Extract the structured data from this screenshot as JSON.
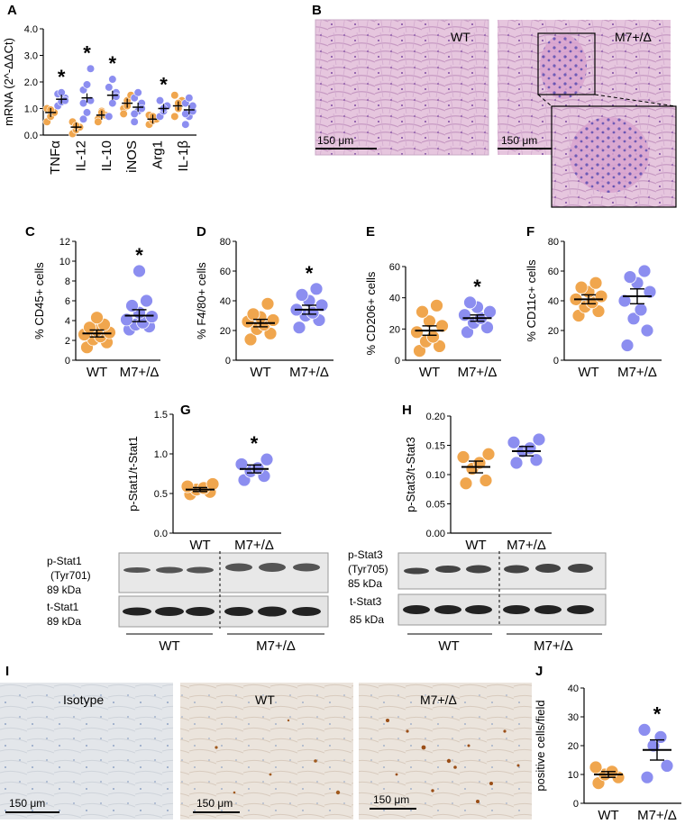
{
  "colors": {
    "wt": "#f0a64e",
    "mut": "#8c8ef0",
    "axis": "#000000"
  },
  "panel_letters": [
    "A",
    "B",
    "C",
    "D",
    "E",
    "F",
    "G",
    "H",
    "I",
    "J"
  ],
  "histology": {
    "B": {
      "labels": [
        "WT",
        "M7+/Δ"
      ],
      "scale": "150 μm"
    },
    "I": {
      "labels": [
        "Isotype",
        "WT",
        "M7+/Δ"
      ],
      "scale": "150 μm"
    }
  },
  "blots": {
    "G": {
      "row1": [
        "p-Stat1",
        "(Tyr701)",
        "89 kDa"
      ],
      "row2": [
        "t-Stat1",
        "89 kDa"
      ],
      "groups": [
        "WT",
        "M7+/Δ"
      ]
    },
    "H": {
      "row1": [
        "p-Stat3",
        "(Tyr705)",
        "85 kDa"
      ],
      "row2": [
        "t-Stat3",
        "85 kDa"
      ],
      "groups": [
        "WT",
        "M7+/Δ"
      ]
    }
  },
  "chart_data": [
    {
      "id": "A",
      "type": "scatter",
      "ylabel": "mRNA (2^-ΔΔCt)",
      "ylim": [
        0,
        4
      ],
      "yticks": [
        "0.0",
        "1.0",
        "2.0",
        "3.0",
        "4.0"
      ],
      "categories": [
        "TNFα",
        "IL-12",
        "IL-10",
        "iNOS",
        "Arg1",
        "IL-1β"
      ],
      "significant": [
        "TNFα",
        "IL-12",
        "IL-10",
        "Arg1"
      ],
      "series": [
        {
          "group": "WT",
          "means": [
            0.85,
            0.3,
            0.75,
            1.2,
            0.6,
            1.1
          ],
          "points": [
            [
              0.5,
              0.7,
              0.85,
              1.0,
              0.95
            ],
            [
              0.05,
              0.2,
              0.3,
              0.5,
              0.35
            ],
            [
              0.6,
              0.9,
              0.75,
              0.5,
              0.85
            ],
            [
              1.0,
              1.3,
              1.5,
              0.8,
              1.1
            ],
            [
              0.4,
              0.55,
              0.6,
              0.75,
              0.7
            ],
            [
              0.7,
              1.0,
              1.3,
              1.5,
              1.2
            ]
          ]
        },
        {
          "group": "M7+/Δ",
          "means": [
            1.35,
            1.4,
            1.5,
            1.05,
            1.0,
            0.95
          ],
          "points": [
            [
              1.1,
              1.25,
              1.4,
              1.55,
              1.6,
              1.3
            ],
            [
              0.6,
              0.85,
              1.3,
              1.7,
              1.9,
              2.5,
              1.2
            ],
            [
              0.7,
              1.2,
              1.6,
              1.8,
              2.1,
              1.45
            ],
            [
              0.5,
              0.9,
              1.2,
              1.4,
              1.6,
              1.0,
              0.8
            ],
            [
              0.7,
              0.9,
              1.1,
              1.3,
              1.0
            ],
            [
              0.4,
              0.7,
              0.9,
              1.2,
              1.4,
              1.1,
              0.8
            ]
          ]
        }
      ]
    },
    {
      "id": "C",
      "type": "scatter",
      "ylabel": "% CD45+ cells",
      "ylim": [
        0,
        12
      ],
      "yticks": [
        "0",
        "2",
        "4",
        "6",
        "8",
        "10",
        "12"
      ],
      "categories": [
        "WT",
        "M7+/Δ"
      ],
      "significant": [
        "M7+/Δ"
      ],
      "means": [
        2.7,
        4.5
      ],
      "sem": [
        0.35,
        0.6
      ],
      "points": [
        [
          1.3,
          1.8,
          2.1,
          2.4,
          2.6,
          2.8,
          3.0,
          3.3,
          3.6,
          4.3
        ],
        [
          3.1,
          3.4,
          3.6,
          3.8,
          4.1,
          4.4,
          4.8,
          5.5,
          6.0,
          9.0
        ]
      ]
    },
    {
      "id": "D",
      "type": "scatter",
      "ylabel": "% F4/80+ cells",
      "ylim": [
        0,
        80
      ],
      "yticks": [
        "0",
        "20",
        "40",
        "60",
        "80"
      ],
      "categories": [
        "WT",
        "M7+/Δ"
      ],
      "significant": [
        "M7+/Δ"
      ],
      "means": [
        25,
        34
      ],
      "sem": [
        2.5,
        3
      ],
      "points": [
        [
          14,
          18,
          21,
          24,
          26,
          27,
          29,
          31,
          38
        ],
        [
          22,
          27,
          30,
          32,
          34,
          37,
          40,
          44,
          48
        ]
      ]
    },
    {
      "id": "E",
      "type": "scatter",
      "ylabel": "% CD206+ cells",
      "ylim": [
        0,
        60
      ],
      "yticks": [
        "0",
        "20",
        "40",
        "60"
      ],
      "categories": [
        "WT",
        "M7+/Δ"
      ],
      "significant": [
        "M7+/Δ"
      ],
      "means": [
        19,
        27
      ],
      "sem": [
        3,
        2
      ],
      "points": [
        [
          6,
          9,
          12,
          15,
          18,
          22,
          25,
          31,
          35
        ],
        [
          18,
          21,
          24,
          27,
          29,
          31,
          34,
          37
        ]
      ]
    },
    {
      "id": "F",
      "type": "scatter",
      "ylabel": "% CD11c+ cells",
      "ylim": [
        0,
        80
      ],
      "yticks": [
        "0",
        "20",
        "40",
        "60",
        "80"
      ],
      "categories": [
        "WT",
        "M7+/Δ"
      ],
      "significant": [],
      "means": [
        41,
        43
      ],
      "sem": [
        3,
        5
      ],
      "points": [
        [
          30,
          33,
          36,
          39,
          41,
          43,
          46,
          49,
          52
        ],
        [
          10,
          20,
          28,
          34,
          40,
          46,
          52,
          56,
          60
        ]
      ]
    },
    {
      "id": "G",
      "type": "scatter",
      "ylabel": "p-Stat1/t-Stat1",
      "ylim": [
        0,
        1.5
      ],
      "yticks": [
        "0.0",
        "0.5",
        "1.0",
        "1.5"
      ],
      "categories": [
        "WT",
        "M7+/Δ"
      ],
      "significant": [
        "M7+/Δ"
      ],
      "means": [
        0.55,
        0.81
      ],
      "sem": [
        0.025,
        0.05
      ],
      "points": [
        [
          0.49,
          0.52,
          0.55,
          0.57,
          0.59,
          0.62
        ],
        [
          0.67,
          0.72,
          0.78,
          0.82,
          0.87,
          0.93
        ]
      ]
    },
    {
      "id": "H",
      "type": "scatter",
      "ylabel": "p-Stat3/t-Stat3",
      "ylim": [
        0,
        0.2
      ],
      "yticks": [
        "0.00",
        "0.05",
        "0.10",
        "0.15",
        "0.20"
      ],
      "categories": [
        "WT",
        "M7+/Δ"
      ],
      "significant": [],
      "means": [
        0.113,
        0.14
      ],
      "sem": [
        0.01,
        0.008
      ],
      "points": [
        [
          0.085,
          0.09,
          0.11,
          0.12,
          0.13,
          0.135
        ],
        [
          0.12,
          0.125,
          0.14,
          0.145,
          0.155,
          0.16
        ]
      ]
    },
    {
      "id": "J",
      "type": "scatter",
      "ylabel": "positive cells/field",
      "ylim": [
        0,
        40
      ],
      "yticks": [
        "0",
        "10",
        "20",
        "30",
        "40"
      ],
      "categories": [
        "WT",
        "M7+/Δ"
      ],
      "significant": [
        "M7+/Δ"
      ],
      "means": [
        10,
        18.5
      ],
      "sem": [
        1,
        3.5
      ],
      "points": [
        [
          7,
          9,
          10,
          11,
          12.5
        ],
        [
          9,
          13,
          20,
          23,
          25.5
        ]
      ]
    }
  ]
}
